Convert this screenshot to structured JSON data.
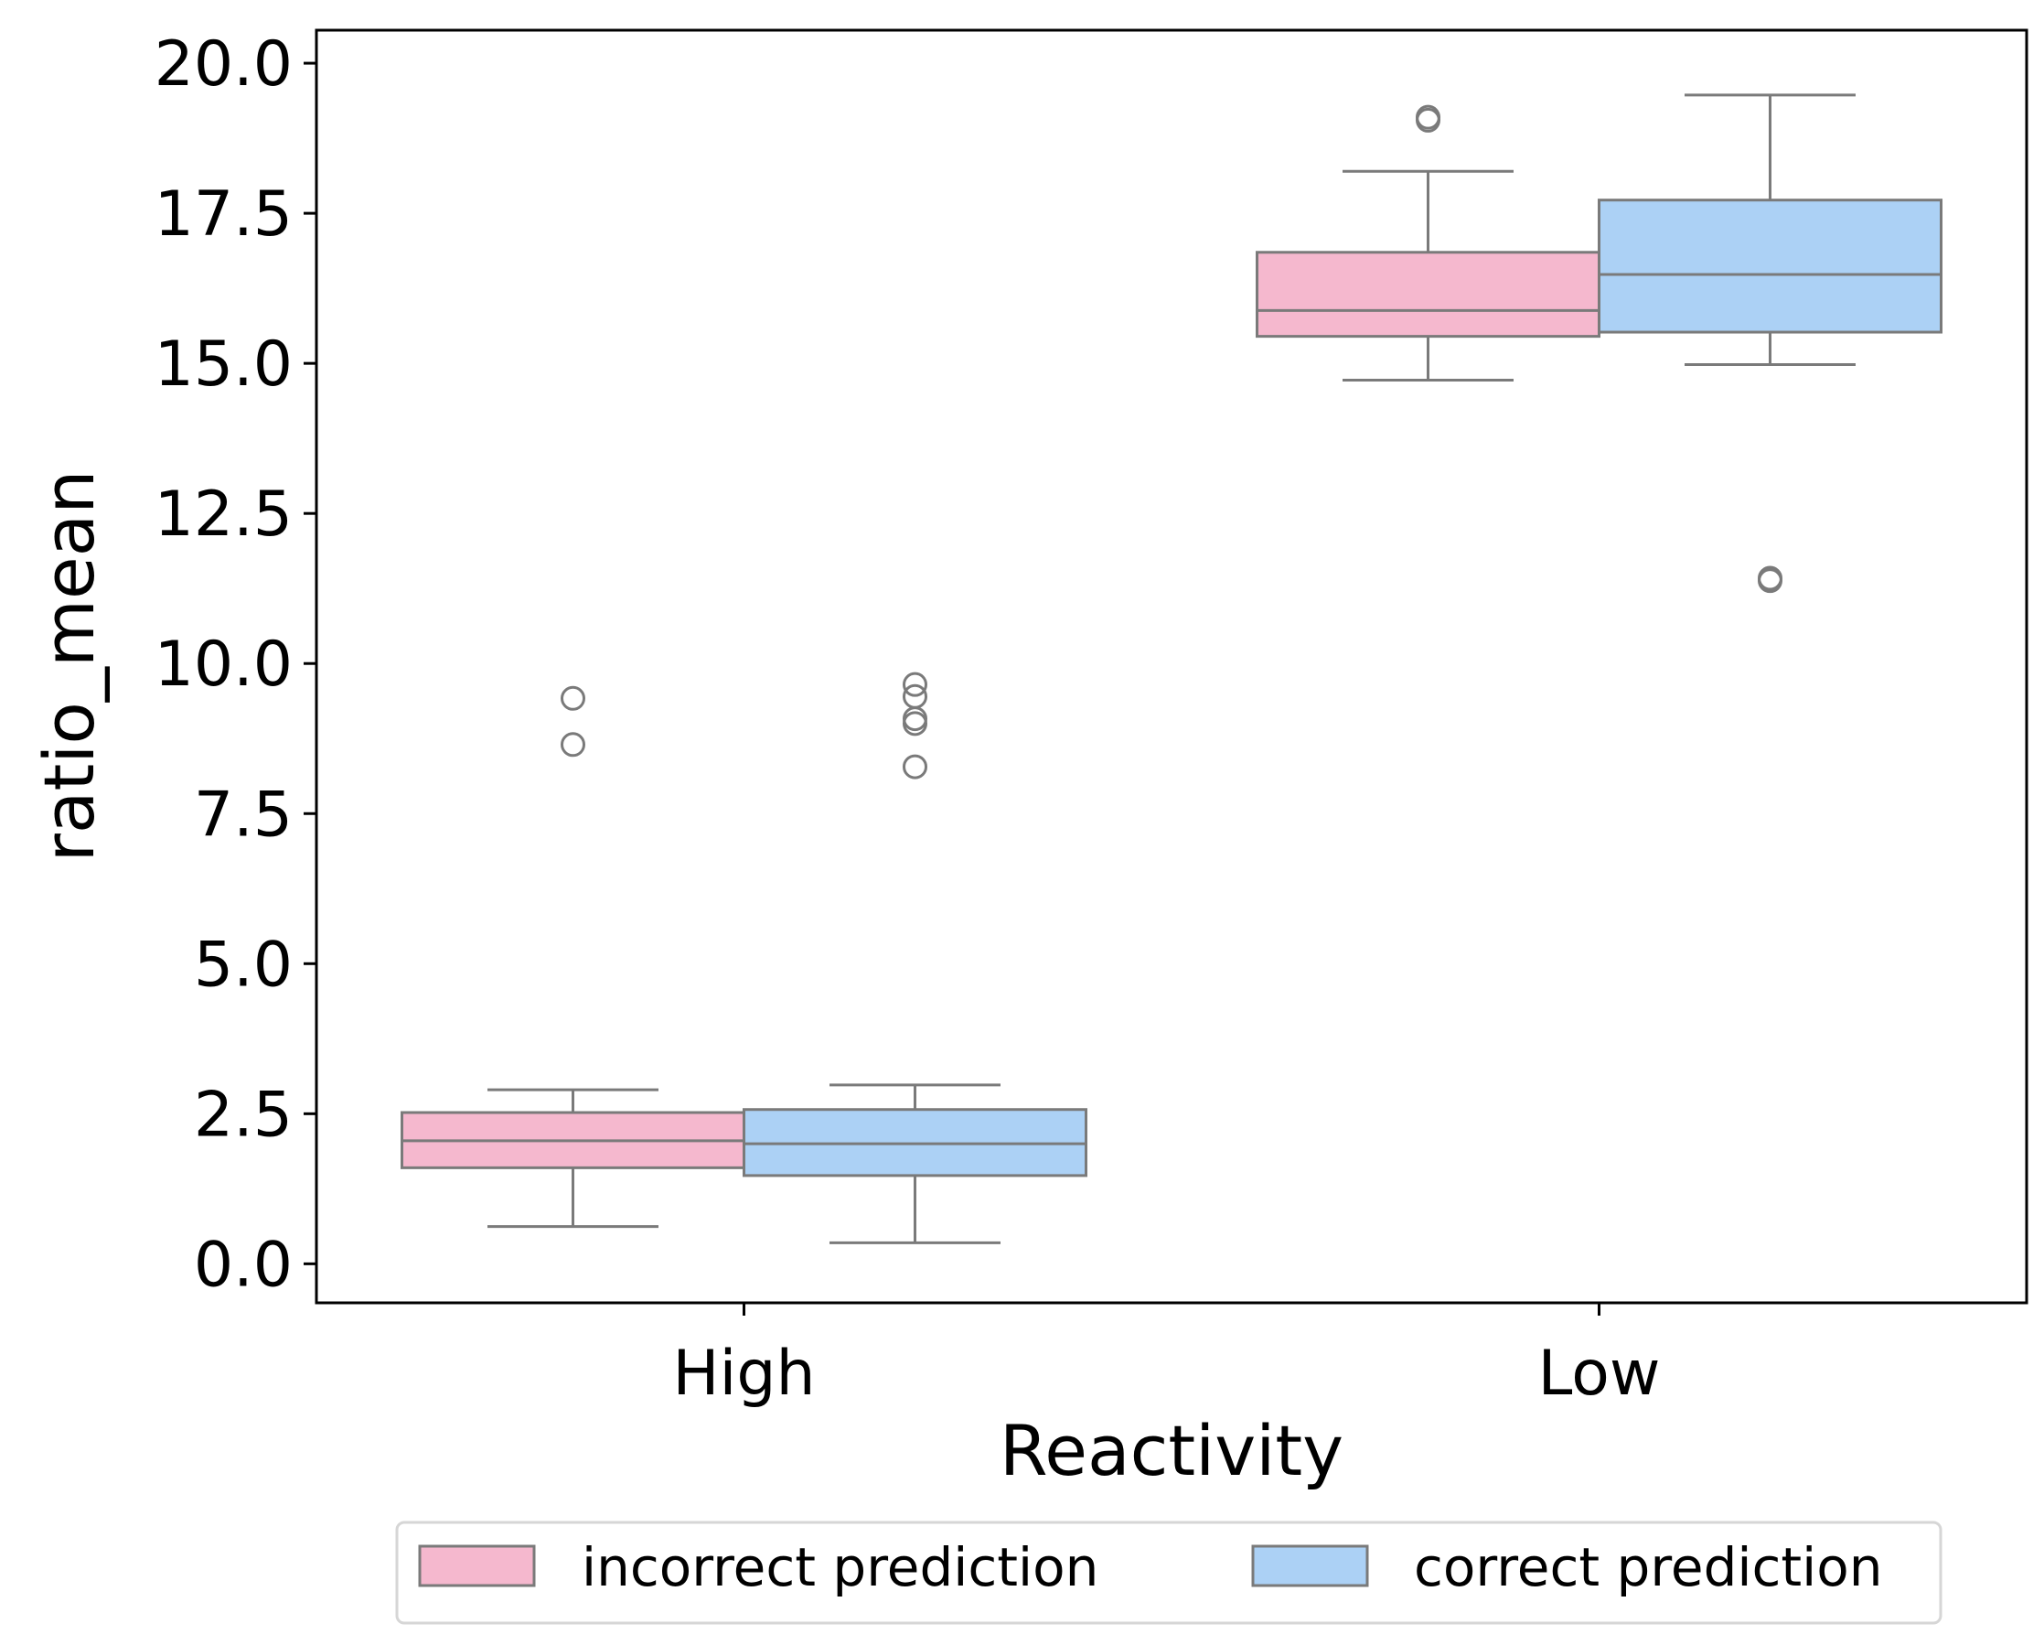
{
  "chart_data": {
    "type": "box",
    "title": "",
    "xlabel": "Reactivity",
    "ylabel": "ratio_mean",
    "categories": [
      "High",
      "Low"
    ],
    "ylim": [
      -0.65,
      20.55
    ],
    "yticks": [
      0.0,
      2.5,
      5.0,
      7.5,
      10.0,
      12.5,
      15.0,
      17.5,
      20.0
    ],
    "ytick_labels": [
      "0.0",
      "2.5",
      "5.0",
      "7.5",
      "10.0",
      "12.5",
      "15.0",
      "17.5",
      "20.0"
    ],
    "grid": false,
    "legend": {
      "placement": "bottom-center-outside",
      "columns": 2
    },
    "series": [
      {
        "name": "incorrect prediction",
        "color": "#f5b8ce",
        "boxes": [
          {
            "category": "High",
            "whislo": 0.62,
            "q1": 1.6,
            "med": 2.05,
            "q3": 2.52,
            "whishi": 2.9,
            "fliers": [
              8.65,
              9.42
            ]
          },
          {
            "category": "Low",
            "whislo": 14.72,
            "q1": 15.45,
            "med": 15.88,
            "q3": 16.85,
            "whishi": 18.2,
            "fliers": [
              19.05,
              19.1
            ]
          }
        ]
      },
      {
        "name": "correct prediction",
        "color": "#acd1f5",
        "boxes": [
          {
            "category": "High",
            "whislo": 0.35,
            "q1": 1.47,
            "med": 2.0,
            "q3": 2.57,
            "whishi": 2.98,
            "fliers": [
              8.28,
              9.0,
              9.08,
              9.45,
              9.65
            ]
          },
          {
            "category": "Low",
            "whislo": 14.98,
            "q1": 15.52,
            "med": 16.48,
            "q3": 17.72,
            "whishi": 19.47,
            "fliers": [
              11.38,
              11.42
            ]
          }
        ]
      }
    ]
  }
}
